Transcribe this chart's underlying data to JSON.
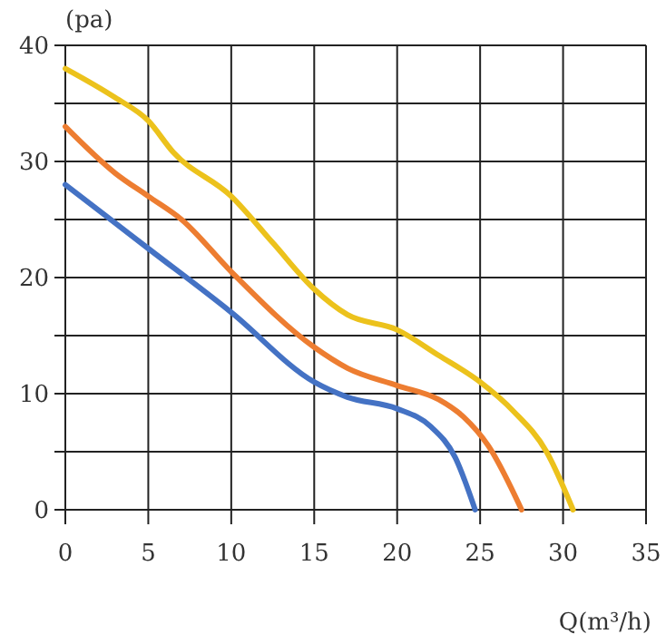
{
  "chart_data": {
    "type": "line",
    "xlabel": "Q(m³/h)",
    "ylabel": "(pa)",
    "xlim": [
      0,
      35
    ],
    "xticks": [
      0,
      5,
      10,
      15,
      20,
      25,
      30,
      35
    ],
    "ylim": [
      0,
      40
    ],
    "yticks": [
      0,
      {
        "value": 5,
        "label": null
      },
      10,
      {
        "value": 15,
        "label": null
      },
      20,
      {
        "value": 25,
        "label": null
      },
      30,
      {
        "value": 35,
        "label": null
      },
      40
    ],
    "grid": true,
    "marker": "none",
    "line_style": "solid",
    "series": [
      {
        "color": "#4472c4",
        "x": [
          0,
          5,
          10,
          15,
          17,
          20,
          22,
          23.5,
          24.7
        ],
        "values": [
          28,
          22.5,
          17,
          11,
          9.7,
          8.7,
          7.2,
          4.5,
          0
        ]
      },
      {
        "color": "#ed7d31",
        "x": [
          0,
          3,
          5,
          7,
          10,
          15,
          17,
          20,
          22.5,
          24,
          25.5,
          27.5
        ],
        "values": [
          33,
          29,
          27,
          25,
          20.5,
          14,
          12.2,
          10.7,
          9.5,
          8,
          5.5,
          0
        ]
      },
      {
        "color": "#ecc21c",
        "x": [
          0,
          3,
          5,
          6.5,
          10,
          12.5,
          15,
          17,
          20,
          22.5,
          25,
          27,
          29,
          30.6
        ],
        "values": [
          38,
          35.5,
          33.5,
          30.8,
          27,
          23,
          19,
          16.8,
          15.5,
          13.3,
          11,
          8.5,
          5,
          0
        ]
      }
    ]
  }
}
